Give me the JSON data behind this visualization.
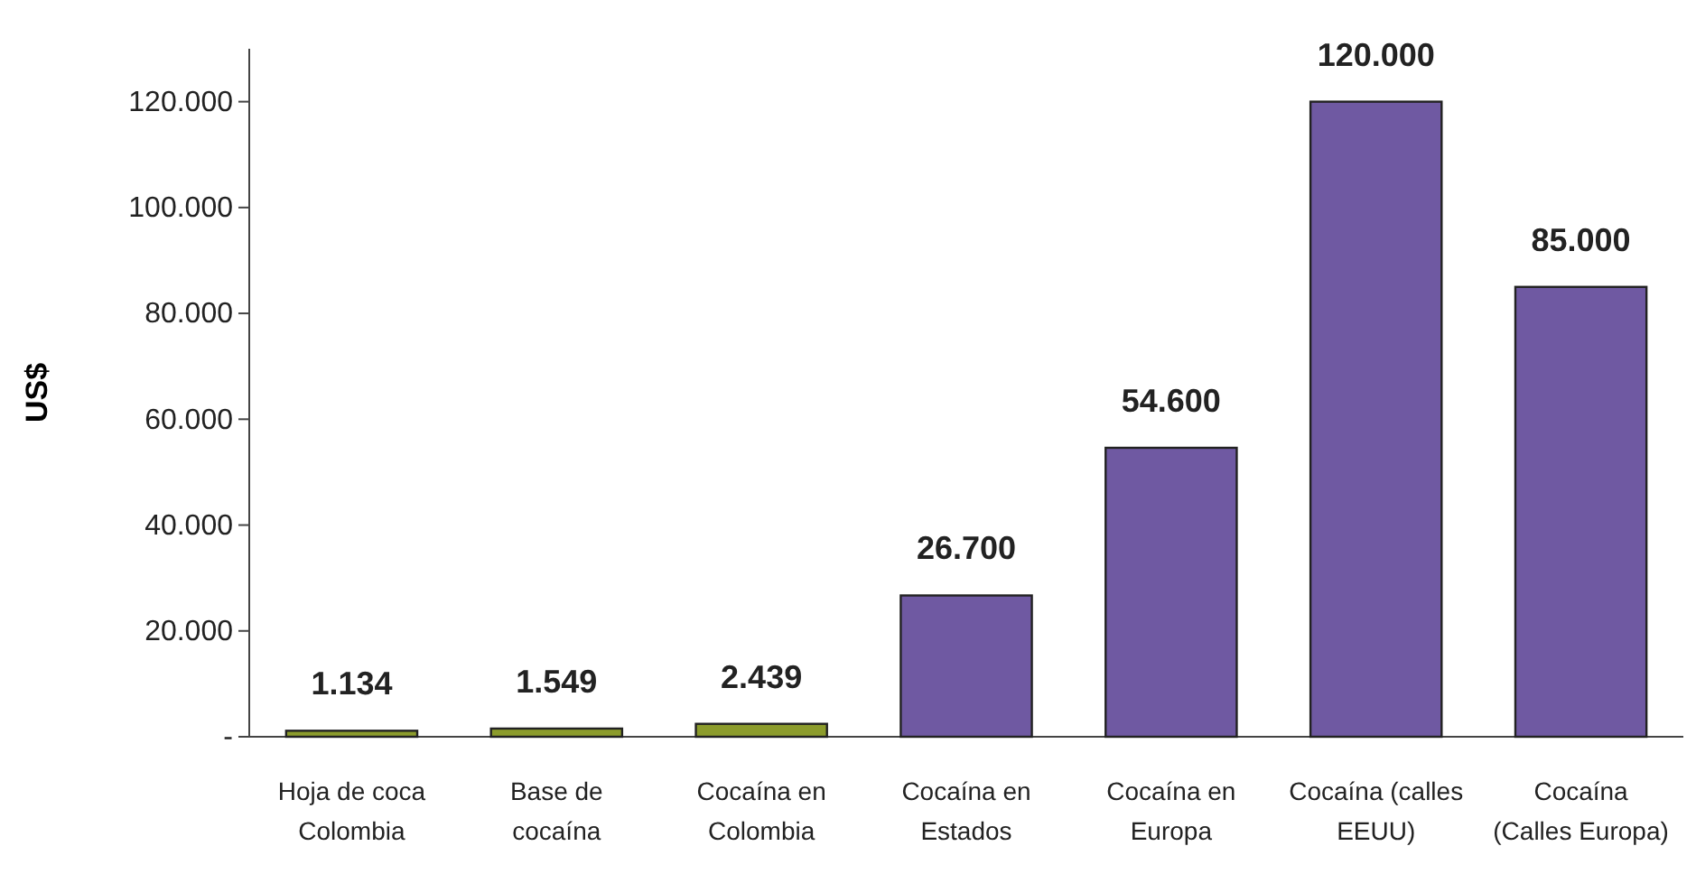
{
  "chart_data": {
    "type": "bar",
    "ylabel": "US$",
    "categories": [
      "Hoja de coca\nColombia",
      "Base de\ncocaína",
      "Cocaína en\nColombia",
      "Cocaína en\nEstados",
      "Cocaína en\nEuropa",
      "Cocaína (calles\nEEUU)",
      "Cocaína\n(Calles Europa)"
    ],
    "values": [
      1134,
      1549,
      2439,
      26700,
      54600,
      120000,
      85000
    ],
    "value_labels": [
      "1.134",
      "1.549",
      "2.439",
      "26.700",
      "54.600",
      "120.000",
      "85.000"
    ],
    "colors": [
      "#8c9c2c",
      "#8c9c2c",
      "#8c9c2c",
      "#6f59a2",
      "#6f59a2",
      "#6f59a2",
      "#6f59a2"
    ],
    "ylim": [
      0,
      130000
    ],
    "yticks": [
      {
        "value": 0,
        "label": "-"
      },
      {
        "value": 20000,
        "label": "20.000"
      },
      {
        "value": 40000,
        "label": "40.000"
      },
      {
        "value": 60000,
        "label": "60.000"
      },
      {
        "value": 80000,
        "label": "80.000"
      },
      {
        "value": 100000,
        "label": "100.000"
      },
      {
        "value": 120000,
        "label": "120.000"
      }
    ],
    "grid": false
  }
}
